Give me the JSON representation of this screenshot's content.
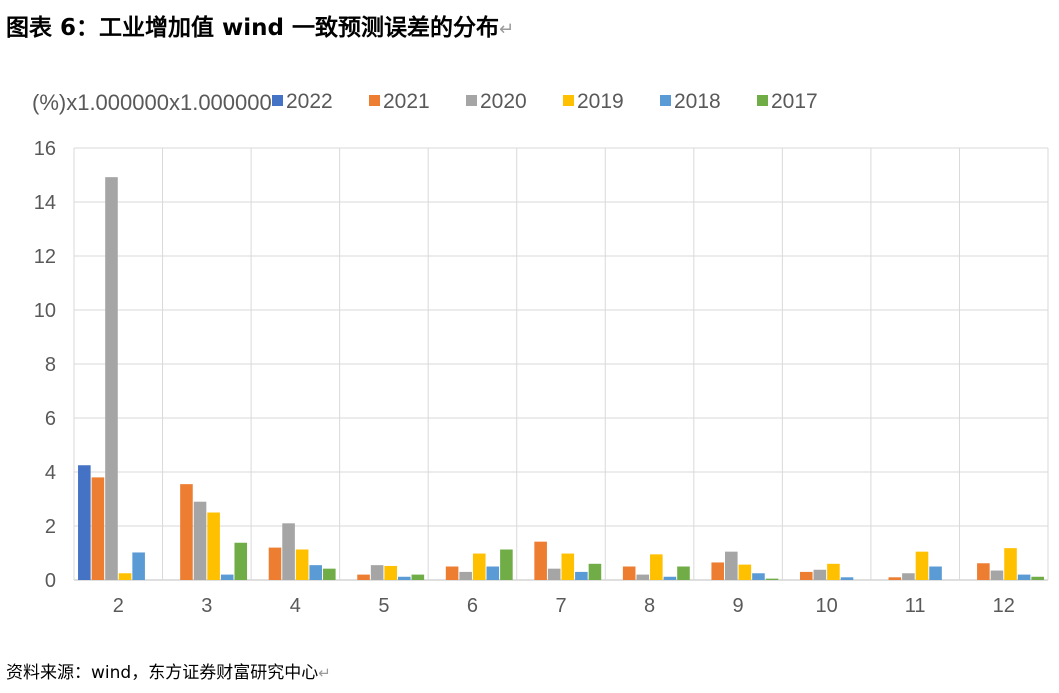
{
  "title": "图表 6：工业增加值 wind 一致预测误差的分布",
  "return_mark": "↵",
  "source": "资料来源：wind，东方证券财富研究中心",
  "chart_data": {
    "type": "bar",
    "unit_label": "(%)x1.000000x1.000000",
    "categories": [
      "2",
      "3",
      "4",
      "5",
      "6",
      "7",
      "8",
      "9",
      "10",
      "11",
      "12"
    ],
    "series": [
      {
        "name": "2022",
        "color": "#4472C4",
        "values": [
          4.25,
          0,
          0,
          0,
          0,
          0,
          0,
          0,
          0,
          0,
          0
        ]
      },
      {
        "name": "2021",
        "color": "#ED7D31",
        "values": [
          3.8,
          3.55,
          1.2,
          0.2,
          0.5,
          1.42,
          0.5,
          0.65,
          0.3,
          0.1,
          0.62
        ]
      },
      {
        "name": "2020",
        "color": "#A5A5A5",
        "values": [
          14.92,
          2.9,
          2.1,
          0.55,
          0.3,
          0.42,
          0.2,
          1.05,
          0.38,
          0.25,
          0.35
        ]
      },
      {
        "name": "2019",
        "color": "#FFC000",
        "values": [
          0.25,
          2.5,
          1.13,
          0.52,
          0.98,
          0.98,
          0.95,
          0.57,
          0.6,
          1.05,
          1.18
        ]
      },
      {
        "name": "2018",
        "color": "#5B9BD5",
        "values": [
          1.02,
          0.2,
          0.55,
          0.12,
          0.5,
          0.3,
          0.12,
          0.25,
          0.1,
          0.5,
          0.2
        ]
      },
      {
        "name": "2017",
        "color": "#70AD47",
        "values": [
          0,
          1.38,
          0.42,
          0.2,
          1.13,
          0.6,
          0.5,
          0.05,
          0,
          0,
          0.12
        ]
      }
    ],
    "ylim": [
      0,
      16
    ],
    "yticks": [
      0,
      2,
      4,
      6,
      8,
      10,
      12,
      14,
      16
    ],
    "grid": true,
    "legend_position": "top"
  }
}
